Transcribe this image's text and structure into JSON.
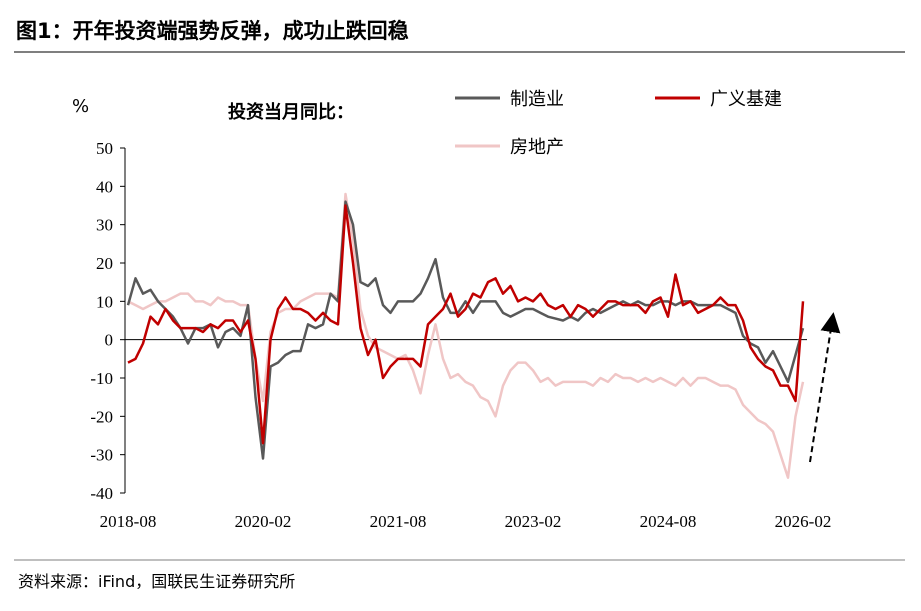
{
  "chart_data": {
    "type": "line",
    "title": "图1：开年投资端强势反弹，成功止跌回稳",
    "subtitle": "投资当月同比：",
    "y_label": "%",
    "source": "资料来源：iFind，国联民生证券研究所",
    "categories": [
      "2018-08",
      null,
      null,
      null,
      null,
      null,
      null,
      null,
      null,
      null,
      null,
      null,
      null,
      null,
      null,
      null,
      null,
      null,
      "2020-02",
      null,
      null,
      null,
      null,
      null,
      null,
      null,
      null,
      null,
      null,
      null,
      null,
      null,
      null,
      null,
      null,
      null,
      "2021-08",
      null,
      null,
      null,
      null,
      null,
      null,
      null,
      null,
      null,
      null,
      null,
      null,
      null,
      null,
      null,
      null,
      null,
      "2023-02",
      null,
      null,
      null,
      null,
      null,
      null,
      null,
      null,
      null,
      null,
      null,
      null,
      null,
      null,
      null,
      null,
      null,
      "2024-08",
      null,
      null,
      null,
      null,
      null,
      null,
      null,
      null,
      null,
      null,
      null,
      null,
      null,
      null,
      null,
      null,
      null,
      "2026-02"
    ],
    "series": [
      {
        "name": "房地产",
        "color": "#f0c6c6",
        "values": [
          10,
          9,
          8,
          9,
          10,
          10,
          11,
          12,
          12,
          10,
          10,
          9,
          11,
          10,
          10,
          9,
          9,
          -5,
          -16,
          2,
          7,
          8,
          8,
          10,
          11,
          12,
          12,
          12,
          11,
          38,
          26,
          8,
          1,
          -2,
          -3,
          -4,
          -5,
          -4,
          -8,
          -14,
          -4,
          4,
          -5,
          -10,
          -9,
          -11,
          -12,
          -15,
          -16,
          -20,
          -12,
          -8,
          -6,
          -6,
          -8,
          -11,
          -10,
          -12,
          -11,
          -11,
          -11,
          -11,
          -12,
          -10,
          -11,
          -9,
          -10,
          -10,
          -11,
          -10,
          -11,
          -10,
          -11,
          -12,
          -10,
          -12,
          -10,
          -10,
          -11,
          -12,
          -12,
          -13,
          -17,
          -19,
          -21,
          -22,
          -24,
          -30,
          -36,
          -20,
          -11
        ]
      },
      {
        "name": "制造业",
        "color": "#595959",
        "values": [
          9,
          16,
          12,
          13,
          10,
          8,
          6,
          3,
          -1,
          3,
          3,
          4,
          -2,
          2,
          3,
          1,
          9,
          -15,
          -31,
          -7,
          -6,
          -4,
          -3,
          -3,
          4,
          3,
          4,
          12,
          10,
          36,
          30,
          15,
          14,
          16,
          9,
          7,
          10,
          10,
          10,
          12,
          16,
          21,
          11,
          7,
          7,
          10,
          7,
          10,
          10,
          10,
          7,
          6,
          7,
          8,
          8,
          7,
          6,
          5.5,
          5,
          6,
          5,
          7,
          8,
          7,
          8,
          9,
          10,
          9,
          10,
          9,
          9,
          10,
          10,
          9,
          10,
          10,
          9,
          9,
          9,
          9,
          8,
          7,
          1,
          -1,
          -2,
          -6,
          -3,
          -7,
          -11,
          -4,
          3
        ]
      },
      {
        "name": "广义基建",
        "color": "#c00000",
        "values": [
          -6,
          -5,
          -1,
          6,
          4,
          8,
          5,
          3,
          3,
          3,
          2,
          4,
          3,
          5,
          5,
          2,
          5,
          -5,
          -27,
          0,
          8,
          11,
          8,
          8,
          7,
          5,
          7,
          5,
          4,
          35,
          20,
          3,
          -4,
          0,
          -10,
          -7,
          -5,
          -5,
          -5,
          -7,
          4,
          6,
          8,
          12,
          6,
          8,
          12,
          11,
          15,
          16,
          12,
          14,
          10,
          11,
          10,
          12,
          9,
          8,
          9,
          6,
          9,
          8,
          6,
          8,
          10,
          10,
          9,
          9,
          9,
          7,
          10,
          11,
          6,
          17,
          9,
          10,
          7,
          8,
          9,
          11,
          9,
          9,
          5,
          -2,
          -5,
          -7,
          -8,
          -12,
          -12,
          -16,
          10
        ]
      }
    ],
    "ylim": [
      -40,
      50
    ],
    "yticks": [
      -40,
      -30,
      -20,
      -10,
      0,
      10,
      20,
      30,
      40,
      50
    ]
  }
}
